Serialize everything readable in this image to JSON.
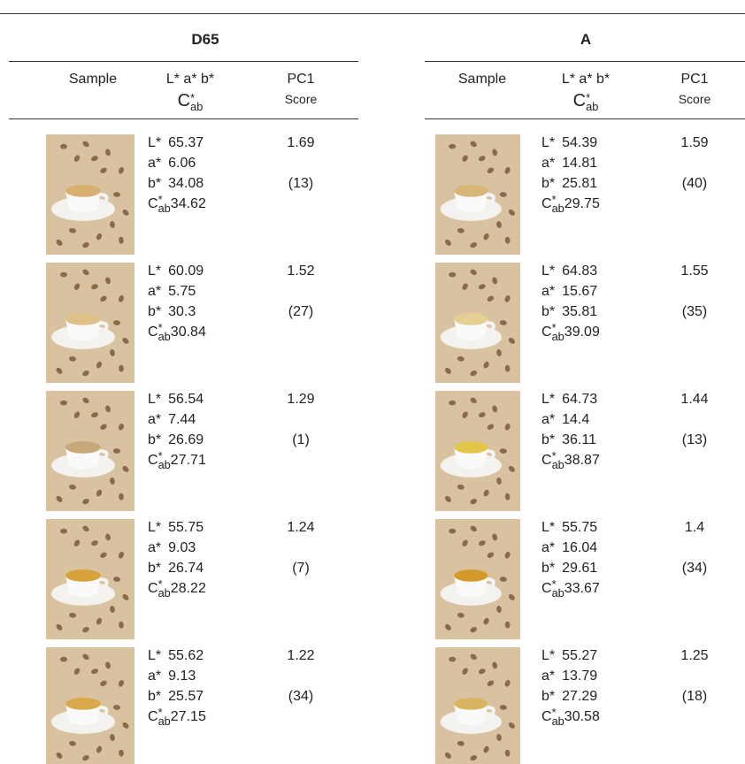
{
  "columns": {
    "sample": "Sample",
    "lab": "L* a* b*",
    "c": {
      "base": "C",
      "sup": "*",
      "sub": "ab"
    },
    "pc1": "PC1",
    "score": "Score"
  },
  "labels": {
    "L": "L*",
    "a": "a*",
    "b": "b*",
    "C": {
      "base": "C",
      "sup": "*",
      "sub": "ab"
    }
  },
  "panels": [
    {
      "title": "D65",
      "rows": [
        {
          "L": 65.37,
          "a": 6.06,
          "b": 34.08,
          "C": 34.62,
          "pc1": 1.69,
          "rank": "(13)"
        },
        {
          "L": 60.09,
          "a": 5.75,
          "b": 30.3,
          "C": 30.84,
          "pc1": 1.52,
          "rank": "(27)"
        },
        {
          "L": 56.54,
          "a": 7.44,
          "b": 26.69,
          "C": 27.71,
          "pc1": 1.29,
          "rank": "(1)"
        },
        {
          "L": 55.75,
          "a": 9.03,
          "b": 26.74,
          "C": 28.22,
          "pc1": 1.24,
          "rank": "(7)"
        },
        {
          "L": 55.62,
          "a": 9.13,
          "b": 25.57,
          "C": 27.15,
          "pc1": 1.22,
          "rank": "(34)"
        }
      ]
    },
    {
      "title": "A",
      "rows": [
        {
          "L": 54.39,
          "a": 14.81,
          "b": 25.81,
          "C": 29.75,
          "pc1": 1.59,
          "rank": "(40)"
        },
        {
          "L": 64.83,
          "a": 15.67,
          "b": 35.81,
          "C": 39.09,
          "pc1": 1.55,
          "rank": "(35)"
        },
        {
          "L": 64.73,
          "a": 14.4,
          "b": 36.11,
          "C": 38.87,
          "pc1": 1.44,
          "rank": "(13)"
        },
        {
          "L": 55.75,
          "a": 16.04,
          "b": 29.61,
          "C": 33.67,
          "pc1": 1.4,
          "rank": "(34)"
        },
        {
          "L": 55.27,
          "a": 13.79,
          "b": 27.29,
          "C": 30.58,
          "pc1": 1.25,
          "rank": "(18)"
        }
      ]
    }
  ]
}
